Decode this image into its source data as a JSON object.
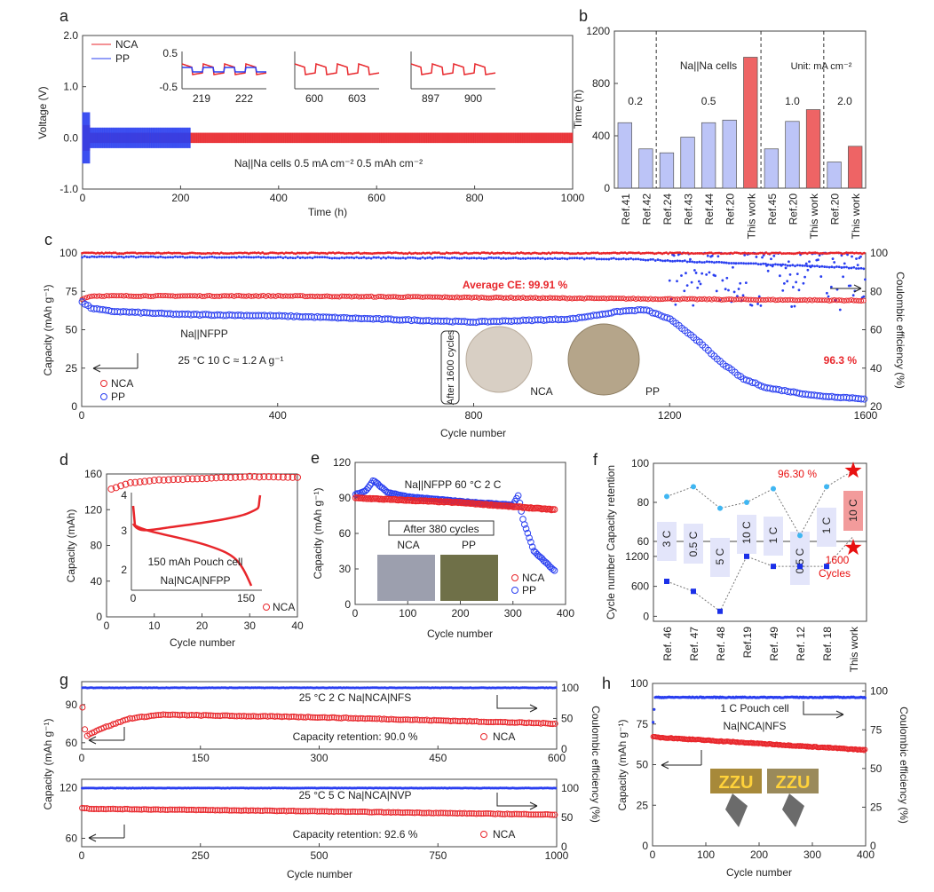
{
  "colors": {
    "nca": "#e8262b",
    "pp": "#2a3ff0",
    "bar_ref": "#bcc4f7",
    "bar_this": "#ee6465",
    "rate_box": "#e3e5fa",
    "rate_box_this": "#f29b9b",
    "ret_line": "#3fb6f2",
    "cyc_line": "#1b30e8"
  },
  "chart_data": [
    {
      "panel": "a",
      "type": "line",
      "xlabel": "Time (h)",
      "ylabel": "Voltage (V)",
      "xlim": [
        0,
        1000
      ],
      "ylim": [
        -1.0,
        2.0
      ],
      "xticks": [
        0,
        200,
        400,
        600,
        800,
        1000
      ],
      "yticks": [
        "-1.0",
        "0.0",
        "1.0",
        "2.0"
      ],
      "legend": [
        "NCA",
        "PP"
      ],
      "legend_position": "top-left",
      "series": [
        {
          "name": "NCA",
          "x_range": [
            0,
            1000
          ],
          "center": 0.0,
          "amplitude": 0.1
        },
        {
          "name": "PP",
          "x_range": [
            0,
            220
          ],
          "center": 0.0,
          "amplitude": 0.2
        }
      ],
      "annotation": "Na||Na cells    0.5 mA cm⁻²    0.5 mAh cm⁻²",
      "insets": [
        {
          "xticks": [
            "219",
            "222"
          ],
          "yticks": [
            "0.5",
            "-0.5"
          ],
          "series": [
            "NCA",
            "PP"
          ]
        },
        {
          "xticks": [
            "600",
            "603"
          ],
          "series": [
            "NCA"
          ]
        },
        {
          "xticks": [
            "897",
            "900"
          ],
          "series": [
            "NCA"
          ]
        }
      ]
    },
    {
      "panel": "b",
      "type": "bar",
      "ylabel": "Time (h)",
      "ylim": [
        0,
        1200
      ],
      "yticks": [
        0,
        400,
        800,
        1200
      ],
      "categories": [
        "Ref.41",
        "Ref.42",
        "Ref.24",
        "Ref.43",
        "Ref.44",
        "Ref.20",
        "This work",
        "Ref.45",
        "Ref.20",
        "This work",
        "Ref.20",
        "This work"
      ],
      "values": [
        500,
        300,
        270,
        390,
        500,
        520,
        1000,
        300,
        510,
        600,
        200,
        320
      ],
      "this_work": [
        false,
        false,
        false,
        false,
        false,
        false,
        true,
        false,
        false,
        true,
        false,
        true
      ],
      "groups": [
        {
          "label": "0.2",
          "range": [
            0,
            1
          ]
        },
        {
          "label": "0.5",
          "range": [
            2,
            6
          ]
        },
        {
          "label": "1.0",
          "range": [
            7,
            9
          ]
        },
        {
          "label": "2.0",
          "range": [
            10,
            11
          ]
        }
      ],
      "annotations": [
        "Na||Na cells",
        "Unit: mA cm⁻²"
      ]
    },
    {
      "panel": "c",
      "type": "scatter",
      "xlabel": "Cycle number",
      "ylabel": "Capacity (mAh g⁻¹)",
      "ylabel_right": "Coulombic efficiency (%)",
      "xlim": [
        0,
        1600
      ],
      "ylim": [
        0,
        100
      ],
      "ylim_right": [
        20,
        100
      ],
      "xticks": [
        0,
        400,
        800,
        1200,
        1600
      ],
      "yticks": [
        0,
        25,
        50,
        75,
        100
      ],
      "yticks_right": [
        20,
        40,
        60,
        80,
        100
      ],
      "legend": [
        "NCA",
        "PP"
      ],
      "legend_position": "bottom-left",
      "series": [
        {
          "name": "NCA",
          "axis": "left",
          "x": [
            1,
            20,
            400,
            800,
            1200,
            1600
          ],
          "y": [
            70,
            72,
            72,
            71,
            70,
            69
          ]
        },
        {
          "name": "PP",
          "axis": "left",
          "x": [
            1,
            20,
            60,
            200,
            400,
            600,
            800,
            1000,
            1100,
            1150,
            1200,
            1250,
            1300,
            1350,
            1400,
            1500,
            1600
          ],
          "y": [
            68,
            64,
            62,
            60,
            59,
            57,
            55,
            57,
            62,
            63,
            57,
            45,
            30,
            18,
            12,
            7,
            5
          ]
        },
        {
          "name": "NCA CE",
          "axis": "right",
          "x": [
            1,
            1600
          ],
          "y": [
            99.9,
            99.9
          ]
        },
        {
          "name": "PP CE",
          "axis": "right",
          "x": [
            1,
            1100,
            1600
          ],
          "y": [
            98,
            97,
            92
          ],
          "scatter_after": 1200
        }
      ],
      "annotations": [
        "Average CE: 99.91 %",
        "96.3 %",
        "Na||NFPP",
        "25 °C   10 C ≈ 1.2 A g⁻¹",
        "After 1600 cycles",
        "NCA",
        "PP"
      ]
    },
    {
      "panel": "d",
      "type": "scatter",
      "xlabel": "Cycle number",
      "ylabel": "Capacity (mAh)",
      "xlim": [
        0,
        40
      ],
      "ylim": [
        0,
        160
      ],
      "xticks": [
        0,
        10,
        20,
        30,
        40
      ],
      "yticks": [
        0,
        40,
        80,
        120,
        160
      ],
      "legend": [
        "NCA"
      ],
      "legend_position": "bottom-right",
      "series": [
        {
          "name": "NCA",
          "x": [
            1,
            5,
            10,
            20,
            30,
            40
          ],
          "y": [
            143,
            150,
            153,
            155,
            157,
            156
          ]
        }
      ],
      "inset": {
        "xticks": [
          "0",
          "150"
        ],
        "yticks": [
          "2",
          "3",
          "4"
        ],
        "labels": [
          "150 mAh Pouch cell",
          "Na|NCA|NFPP"
        ]
      }
    },
    {
      "panel": "e",
      "type": "scatter",
      "xlabel": "Cycle number",
      "ylabel": "Capacity (mAh g⁻¹)",
      "xlim": [
        0,
        400
      ],
      "ylim": [
        0,
        120
      ],
      "xticks": [
        0,
        100,
        200,
        300,
        400
      ],
      "yticks": [
        0,
        30,
        60,
        90,
        120
      ],
      "legend": [
        "NCA",
        "PP"
      ],
      "legend_position": "bottom-right",
      "series": [
        {
          "name": "NCA",
          "x": [
            1,
            50,
            200,
            380
          ],
          "y": [
            90,
            89,
            86,
            80
          ]
        },
        {
          "name": "PP",
          "x": [
            1,
            20,
            35,
            60,
            100,
            200,
            300,
            310,
            320,
            340,
            380
          ],
          "y": [
            93,
            96,
            105,
            95,
            91,
            87,
            84,
            92,
            70,
            45,
            28
          ]
        }
      ],
      "annotations": [
        "Na||NFPP  60 °C  2 C",
        "After 380 cycles",
        "NCA",
        "PP"
      ]
    },
    {
      "panel": "f",
      "type": "line",
      "ylabel": "Cycle number  Capacity retention",
      "categories": [
        "Ref. 46",
        "Ref. 47",
        "Ref. 48",
        "Ref.19",
        "Ref. 49",
        "Ref. 12",
        "Ref. 18",
        "This work"
      ],
      "retention": [
        83,
        88,
        77,
        80,
        87,
        63,
        88,
        96.3
      ],
      "cycles": [
        700,
        500,
        100,
        1200,
        1000,
        1000,
        1000,
        1600
      ],
      "rates": [
        "3 C",
        "0.5 C",
        "5 C",
        "10 C",
        "1 C",
        "0.5 C",
        "1 C",
        "10 C"
      ],
      "yticks_top": [
        60,
        80,
        100
      ],
      "yticks_bottom": [
        0,
        600,
        1200
      ],
      "annotations": [
        "96.30 %",
        "1600",
        "Cycles"
      ]
    },
    {
      "panel": "g",
      "type": "scatter",
      "xlabel": "Cycle number",
      "ylabel": "Capacity (mAh g⁻¹)",
      "ylabel_right": "Coulombic efficiency (%)",
      "subplots": [
        {
          "xlim": [
            0,
            600
          ],
          "xticks": [
            0,
            150,
            300,
            450,
            600
          ],
          "ylim": [
            55,
            108
          ],
          "yticks": [
            60,
            90
          ],
          "ylim_right": [
            0,
            110
          ],
          "yticks_right": [
            0,
            50,
            100
          ],
          "series": [
            {
              "name": "NCA",
              "x": [
                1,
                5,
                20,
                60,
                100,
                300,
                600
              ],
              "y": [
                88,
                65,
                70,
                79,
                82,
                80,
                75
              ]
            },
            {
              "name": "CE",
              "x": [
                1,
                600
              ],
              "y": [
                100,
                100
              ]
            }
          ],
          "annotations": [
            "25 °C   2 C    Na|NCA|NFS",
            "Capacity retention:   90.0 %"
          ],
          "legend": [
            "NCA"
          ]
        },
        {
          "xlim": [
            0,
            1000
          ],
          "xticks": [
            0,
            250,
            500,
            750,
            1000
          ],
          "ylim": [
            50,
            130
          ],
          "yticks": [
            60,
            120
          ],
          "ylim_right": [
            0,
            115
          ],
          "yticks_right": [
            0,
            50,
            100
          ],
          "series": [
            {
              "name": "NCA",
              "x": [
                1,
                20,
                500,
                1000
              ],
              "y": [
                96,
                95,
                92,
                88
              ]
            },
            {
              "name": "CE",
              "x": [
                1,
                1000
              ],
              "y": [
                100,
                100
              ]
            }
          ],
          "annotations": [
            "25 °C   5 C    Na|NCA|NVP",
            "Capacity retention:   92.6 %"
          ],
          "legend": [
            "NCA"
          ]
        }
      ]
    },
    {
      "panel": "h",
      "type": "scatter",
      "xlabel": "Cycle number",
      "ylabel": "Capacity (mAh g⁻¹)",
      "ylabel_right": "Coulombic efficiency (%)",
      "xlim": [
        0,
        400
      ],
      "ylim": [
        0,
        100
      ],
      "ylim_right": [
        0,
        105
      ],
      "xticks": [
        0,
        100,
        200,
        300,
        400
      ],
      "yticks": [
        0,
        25,
        50,
        75,
        100
      ],
      "yticks_right": [
        0,
        25,
        50,
        75,
        100
      ],
      "series": [
        {
          "name": "NCA",
          "x": [
            1,
            400
          ],
          "y": [
            67,
            59
          ]
        },
        {
          "name": "CE",
          "x": [
            1,
            5,
            400
          ],
          "y": [
            80,
            96,
            96
          ]
        }
      ],
      "annotations": [
        "1 C Pouch cell",
        "Na|NCA|NFS"
      ],
      "photo_text": "ZZU"
    }
  ],
  "panel_labels": [
    "a",
    "b",
    "c",
    "d",
    "e",
    "f",
    "g",
    "h"
  ]
}
